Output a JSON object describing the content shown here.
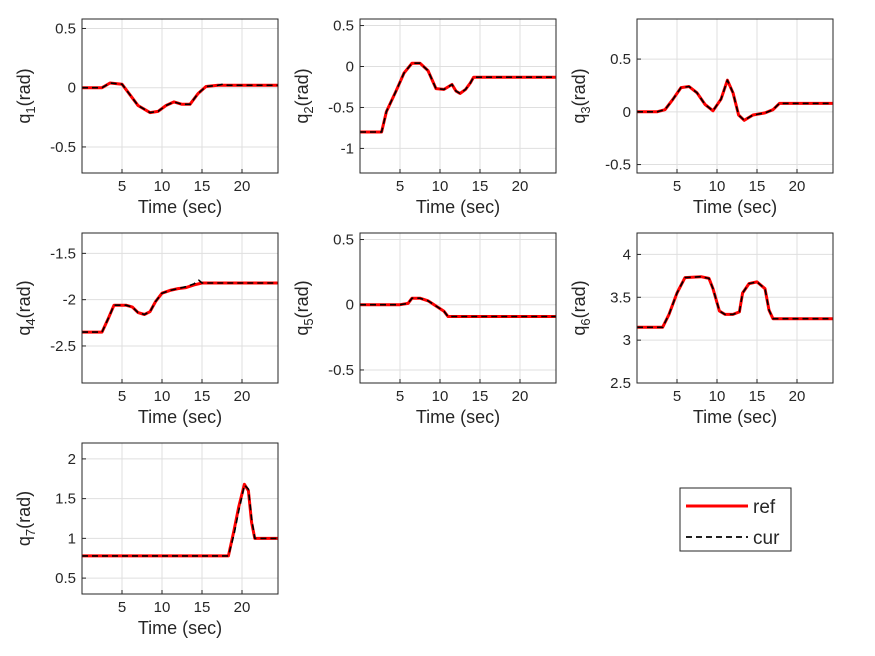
{
  "chart_data": [
    {
      "type": "line",
      "joint": "1",
      "ylabel": "q",
      "ylabel_unit": "(rad)",
      "xlabel": "Time (sec)",
      "xlim": [
        0,
        24.5
      ],
      "ylim": [
        -0.72,
        0.58
      ],
      "xticks": [
        "5",
        "10",
        "15",
        "20"
      ],
      "yticks": [
        "0.5",
        "0",
        "-0.5"
      ],
      "grid": true,
      "series": [
        {
          "name": "ref",
          "x": [
            0,
            2.5,
            3.5,
            5,
            6,
            7,
            8.5,
            9.5,
            10.5,
            11.5,
            12.5,
            13.5,
            14.5,
            15.5,
            17,
            24.5
          ],
          "y": [
            0,
            0,
            0.04,
            0.03,
            -0.06,
            -0.15,
            -0.21,
            -0.2,
            -0.15,
            -0.12,
            -0.14,
            -0.14,
            -0.05,
            0.01,
            0.02,
            0.02
          ]
        },
        {
          "name": "cur",
          "x": [
            0,
            2.5,
            3.5,
            5,
            6,
            7,
            8.5,
            9.5,
            10.5,
            11.5,
            12.5,
            13.5,
            14.5,
            15.5,
            17,
            17.6,
            18.2,
            24.5
          ],
          "y": [
            0,
            0,
            0.04,
            0.03,
            -0.06,
            -0.15,
            -0.21,
            -0.2,
            -0.15,
            -0.12,
            -0.14,
            -0.14,
            -0.05,
            0.01,
            0.02,
            0.03,
            0.02,
            0.02
          ]
        }
      ]
    },
    {
      "type": "line",
      "joint": "2",
      "ylabel": "q",
      "ylabel_unit": "(rad)",
      "xlabel": "Time (sec)",
      "xlim": [
        0,
        24.5
      ],
      "ylim": [
        -1.3,
        0.58
      ],
      "xticks": [
        "5",
        "10",
        "15",
        "20"
      ],
      "yticks": [
        "0.5",
        "0",
        "-0.5",
        "-1"
      ],
      "grid": true,
      "series": [
        {
          "name": "ref",
          "x": [
            0,
            2.7,
            3.3,
            4.5,
            5.5,
            6.5,
            7.5,
            8.5,
            9.5,
            10.5,
            11.5,
            12,
            12.5,
            13.2,
            13.8,
            14.2,
            24.5
          ],
          "y": [
            -0.8,
            -0.8,
            -0.55,
            -0.3,
            -0.08,
            0.04,
            0.04,
            -0.05,
            -0.27,
            -0.28,
            -0.22,
            -0.3,
            -0.33,
            -0.28,
            -0.2,
            -0.13,
            -0.13
          ]
        },
        {
          "name": "cur",
          "x": [
            0,
            2.7,
            3.3,
            4.5,
            5.5,
            6.5,
            7.5,
            8.5,
            9.5,
            10.5,
            11.5,
            12,
            12.5,
            13.2,
            13.8,
            14.2,
            24.5
          ],
          "y": [
            -0.8,
            -0.8,
            -0.55,
            -0.3,
            -0.08,
            0.04,
            0.04,
            -0.05,
            -0.27,
            -0.28,
            -0.22,
            -0.3,
            -0.33,
            -0.28,
            -0.2,
            -0.13,
            -0.13
          ]
        }
      ]
    },
    {
      "type": "line",
      "joint": "3",
      "ylabel": "q",
      "ylabel_unit": "(rad)",
      "xlabel": "Time (sec)",
      "xlim": [
        0,
        24.5
      ],
      "ylim": [
        -0.58,
        0.88
      ],
      "xticks": [
        "5",
        "10",
        "15",
        "20"
      ],
      "yticks": [
        "0.5",
        "0",
        "-0.5"
      ],
      "grid": true,
      "series": [
        {
          "name": "ref",
          "x": [
            0,
            2.5,
            3.5,
            4.5,
            5.5,
            6.5,
            7.5,
            8.5,
            9.5,
            10.5,
            11.3,
            12,
            12.7,
            13.4,
            14.5,
            16,
            17,
            17.8,
            24.5
          ],
          "y": [
            0,
            0,
            0.02,
            0.12,
            0.23,
            0.24,
            0.18,
            0.07,
            0.01,
            0.12,
            0.3,
            0.18,
            -0.03,
            -0.08,
            -0.03,
            -0.01,
            0.02,
            0.08,
            0.08
          ]
        },
        {
          "name": "cur",
          "x": [
            0,
            2.5,
            3.5,
            4.5,
            5.5,
            6.5,
            7.5,
            8.5,
            9.5,
            10.5,
            11.3,
            12,
            12.7,
            13.4,
            14.5,
            16,
            17,
            17.8,
            24.5
          ],
          "y": [
            0,
            0,
            0.02,
            0.12,
            0.23,
            0.24,
            0.18,
            0.07,
            0.01,
            0.12,
            0.3,
            0.18,
            -0.03,
            -0.08,
            -0.03,
            -0.01,
            0.02,
            0.08,
            0.08
          ]
        }
      ]
    },
    {
      "type": "line",
      "joint": "4",
      "ylabel": "q",
      "ylabel_unit": "(rad)",
      "xlabel": "Time (sec)",
      "xlim": [
        0,
        24.5
      ],
      "ylim": [
        -2.9,
        -1.28
      ],
      "xticks": [
        "5",
        "10",
        "15",
        "20"
      ],
      "yticks": [
        "-1.5",
        "-2",
        "-2.5"
      ],
      "grid": true,
      "series": [
        {
          "name": "ref",
          "x": [
            0,
            2.5,
            3.3,
            4,
            5.5,
            6.3,
            7,
            7.8,
            8.5,
            9.2,
            10,
            11,
            12,
            13,
            14,
            15,
            16,
            24.5
          ],
          "y": [
            -2.35,
            -2.35,
            -2.2,
            -2.06,
            -2.06,
            -2.08,
            -2.14,
            -2.16,
            -2.13,
            -2.02,
            -1.93,
            -1.9,
            -1.88,
            -1.87,
            -1.84,
            -1.82,
            -1.82,
            -1.82
          ]
        },
        {
          "name": "cur",
          "x": [
            0,
            2.5,
            3.3,
            4,
            5.5,
            6.3,
            7,
            7.8,
            8.5,
            9.2,
            10,
            11,
            12,
            13,
            14,
            14.6,
            15,
            16,
            24.5
          ],
          "y": [
            -2.35,
            -2.35,
            -2.2,
            -2.06,
            -2.06,
            -2.08,
            -2.14,
            -2.16,
            -2.13,
            -2.02,
            -1.93,
            -1.9,
            -1.88,
            -1.86,
            -1.83,
            -1.79,
            -1.82,
            -1.82,
            -1.82
          ]
        }
      ]
    },
    {
      "type": "line",
      "joint": "5",
      "ylabel": "q",
      "ylabel_unit": "(rad)",
      "xlabel": "Time (sec)",
      "xlim": [
        0,
        24.5
      ],
      "ylim": [
        -0.6,
        0.55
      ],
      "xticks": [
        "5",
        "10",
        "15",
        "20"
      ],
      "yticks": [
        "0.5",
        "0",
        "-0.5"
      ],
      "grid": true,
      "series": [
        {
          "name": "ref",
          "x": [
            0,
            5,
            6,
            6.5,
            7.5,
            8.5,
            9.5,
            10.5,
            11,
            24.5
          ],
          "y": [
            0,
            0,
            0.01,
            0.05,
            0.05,
            0.03,
            -0.01,
            -0.05,
            -0.09,
            -0.09
          ]
        },
        {
          "name": "cur",
          "x": [
            0,
            5,
            6,
            6.5,
            7.5,
            8.5,
            9.5,
            10.5,
            11,
            24.5
          ],
          "y": [
            0,
            0,
            0.01,
            0.05,
            0.05,
            0.03,
            -0.01,
            -0.05,
            -0.09,
            -0.09
          ]
        }
      ]
    },
    {
      "type": "line",
      "joint": "6",
      "ylabel": "q",
      "ylabel_unit": "(rad)",
      "xlabel": "Time (sec)",
      "xlim": [
        0,
        24.5
      ],
      "ylim": [
        2.5,
        4.25
      ],
      "xticks": [
        "5",
        "10",
        "15",
        "20"
      ],
      "yticks": [
        "4",
        "3.5",
        "3",
        "2.5"
      ],
      "grid": true,
      "series": [
        {
          "name": "ref",
          "x": [
            0,
            3.2,
            4,
            5,
            6,
            8,
            9,
            9.5,
            10.3,
            11,
            12,
            12.8,
            13.2,
            14,
            15,
            16,
            16.5,
            17,
            24.5
          ],
          "y": [
            3.15,
            3.15,
            3.3,
            3.55,
            3.73,
            3.74,
            3.72,
            3.6,
            3.34,
            3.3,
            3.3,
            3.33,
            3.55,
            3.66,
            3.68,
            3.6,
            3.35,
            3.25,
            3.25
          ]
        },
        {
          "name": "cur",
          "x": [
            0,
            3.2,
            4,
            5,
            6,
            8,
            9,
            9.5,
            10.3,
            11,
            12,
            12.8,
            13.2,
            14,
            15,
            16,
            16.5,
            17,
            24.5
          ],
          "y": [
            3.15,
            3.15,
            3.3,
            3.55,
            3.73,
            3.74,
            3.72,
            3.6,
            3.34,
            3.3,
            3.3,
            3.33,
            3.55,
            3.66,
            3.68,
            3.6,
            3.35,
            3.25,
            3.25
          ]
        }
      ]
    },
    {
      "type": "line",
      "joint": "7",
      "ylabel": "q",
      "ylabel_unit": "(rad)",
      "xlabel": "Time (sec)",
      "xlim": [
        0,
        24.5
      ],
      "ylim": [
        0.3,
        2.2
      ],
      "xticks": [
        "5",
        "10",
        "15",
        "20"
      ],
      "yticks": [
        "2",
        "1.5",
        "1",
        "0.5"
      ],
      "grid": true,
      "series": [
        {
          "name": "ref",
          "x": [
            0,
            18.3,
            19,
            19.6,
            20.3,
            20.8,
            21.2,
            21.6,
            22.3,
            24.5
          ],
          "y": [
            0.78,
            0.78,
            1.1,
            1.4,
            1.68,
            1.6,
            1.2,
            1.0,
            1.0,
            1.0
          ]
        },
        {
          "name": "cur",
          "x": [
            0,
            18.3,
            19,
            19.6,
            20.3,
            20.8,
            21.2,
            21.6,
            22.3,
            24.5
          ],
          "y": [
            0.78,
            0.78,
            1.05,
            1.35,
            1.67,
            1.62,
            1.25,
            1.0,
            1.0,
            1.0
          ]
        }
      ]
    }
  ],
  "legend": {
    "items": [
      {
        "label": "ref",
        "color": "#ff0000",
        "style": "solid"
      },
      {
        "label": "cur",
        "color": "#000000",
        "style": "dashed"
      }
    ]
  }
}
